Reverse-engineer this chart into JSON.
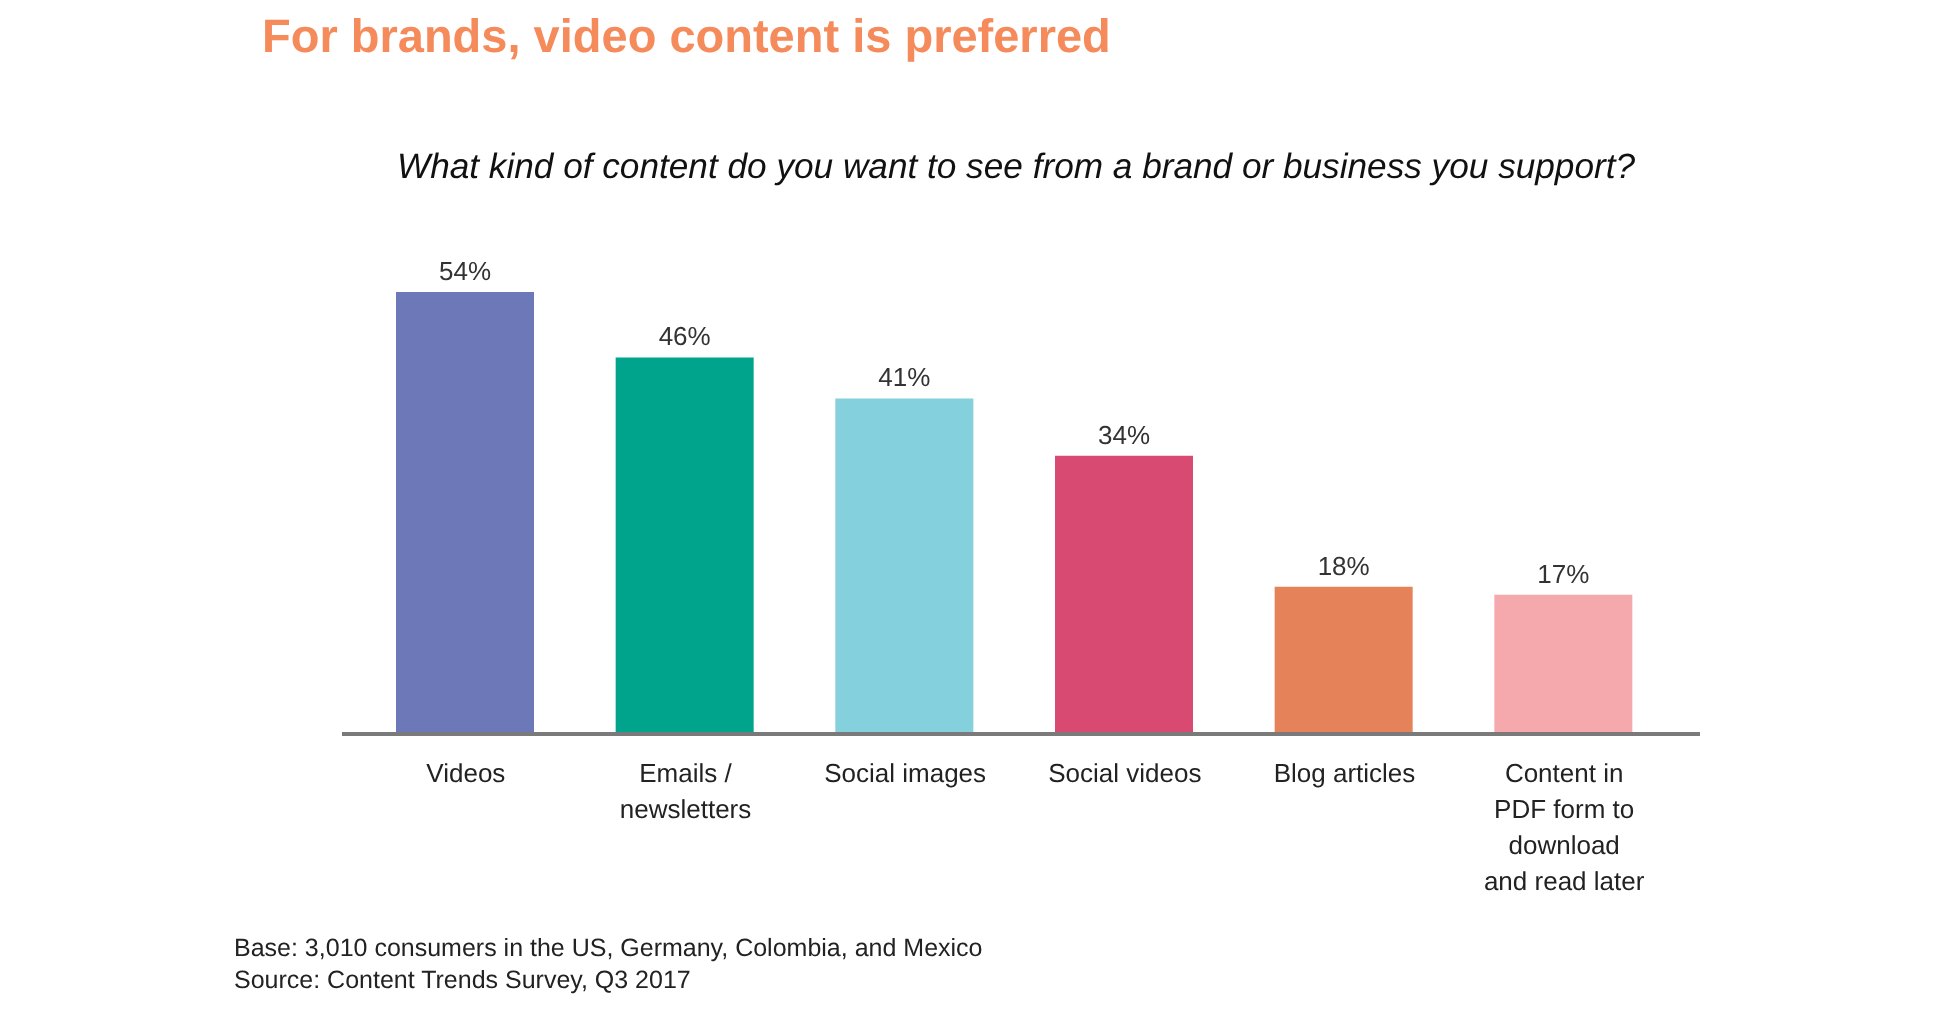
{
  "chart_data": {
    "type": "bar",
    "title": "For brands, video content is preferred",
    "subtitle": "What kind of content do you want to see from a brand or business you support?",
    "categories": [
      "Videos",
      "Emails /\nnewsletters",
      "Social images",
      "Social videos",
      "Blog articles",
      "Content in\nPDF form to\ndownload\nand read later"
    ],
    "values": [
      54,
      46,
      41,
      34,
      18,
      17
    ],
    "colors": [
      "#6c78b8",
      "#00a38b",
      "#84d0dc",
      "#d94a72",
      "#e5825a",
      "#f6a9ad"
    ],
    "value_labels": [
      "54%",
      "46%",
      "41%",
      "34%",
      "18%",
      "17%"
    ],
    "annotations": [
      "Base: 3,010 consumers in the US, Germany, Colombia, and Mexico",
      "Source: Content Trends Survey, Q3 2017"
    ]
  }
}
